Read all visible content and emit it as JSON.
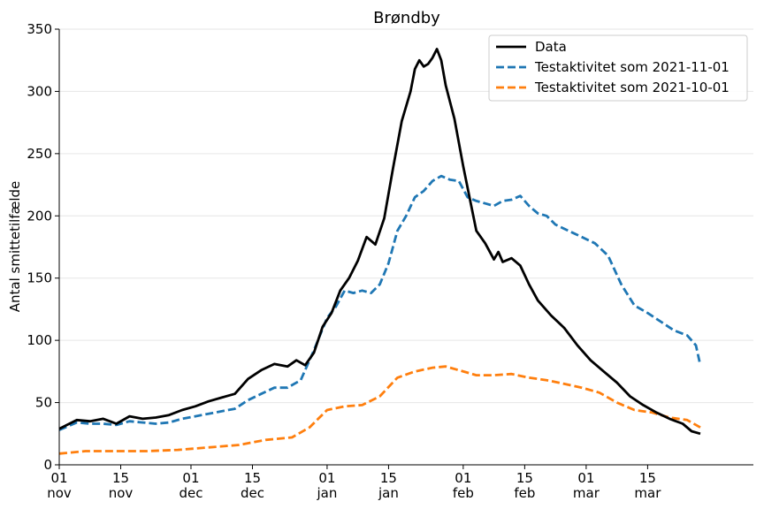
{
  "chart_data": {
    "type": "line",
    "title": "Brøndby",
    "xlabel": "",
    "ylabel": "Antal smittetilfælde",
    "xlim": [
      "2021-11-01",
      "2022-03-27"
    ],
    "ylim": [
      0,
      350
    ],
    "yticks": [
      0,
      50,
      100,
      150,
      200,
      250,
      300,
      350
    ],
    "xticks": [
      {
        "date": "2021-11-01",
        "day": "01",
        "month": "nov"
      },
      {
        "date": "2021-11-15",
        "day": "15",
        "month": "nov"
      },
      {
        "date": "2021-12-01",
        "day": "01",
        "month": "dec"
      },
      {
        "date": "2021-12-15",
        "day": "15",
        "month": "dec"
      },
      {
        "date": "2022-01-01",
        "day": "01",
        "month": "jan"
      },
      {
        "date": "2022-01-15",
        "day": "15",
        "month": "jan"
      },
      {
        "date": "2022-02-01",
        "day": "01",
        "month": "feb"
      },
      {
        "date": "2022-02-15",
        "day": "15",
        "month": "feb"
      },
      {
        "date": "2022-03-01",
        "day": "01",
        "month": "mar"
      },
      {
        "date": "2022-03-15",
        "day": "15",
        "month": "mar"
      }
    ],
    "grid": "horizontal",
    "legend_position": "top-right",
    "series": [
      {
        "name": "Data",
        "color": "#000000",
        "style": "solid",
        "points": [
          [
            "2021-11-01",
            29
          ],
          [
            "2021-11-05",
            36
          ],
          [
            "2021-11-08",
            35
          ],
          [
            "2021-11-11",
            37
          ],
          [
            "2021-11-14",
            33
          ],
          [
            "2021-11-17",
            39
          ],
          [
            "2021-11-20",
            37
          ],
          [
            "2021-11-23",
            38
          ],
          [
            "2021-11-26",
            40
          ],
          [
            "2021-11-29",
            44
          ],
          [
            "2021-12-02",
            47
          ],
          [
            "2021-12-05",
            51
          ],
          [
            "2021-12-08",
            54
          ],
          [
            "2021-12-11",
            57
          ],
          [
            "2021-12-14",
            69
          ],
          [
            "2021-12-17",
            76
          ],
          [
            "2021-12-20",
            81
          ],
          [
            "2021-12-23",
            79
          ],
          [
            "2021-12-25",
            84
          ],
          [
            "2021-12-27",
            80
          ],
          [
            "2021-12-29",
            90
          ],
          [
            "2021-12-31",
            111
          ],
          [
            "2022-01-02",
            122
          ],
          [
            "2022-01-04",
            140
          ],
          [
            "2022-01-06",
            150
          ],
          [
            "2022-01-08",
            164
          ],
          [
            "2022-01-10",
            183
          ],
          [
            "2022-01-12",
            177
          ],
          [
            "2022-01-14",
            198
          ],
          [
            "2022-01-16",
            238
          ],
          [
            "2022-01-18",
            276
          ],
          [
            "2022-01-20",
            300
          ],
          [
            "2022-01-21",
            318
          ],
          [
            "2022-01-22",
            325
          ],
          [
            "2022-01-23",
            320
          ],
          [
            "2022-01-24",
            322
          ],
          [
            "2022-01-25",
            327
          ],
          [
            "2022-01-26",
            334
          ],
          [
            "2022-01-27",
            325
          ],
          [
            "2022-01-28",
            305
          ],
          [
            "2022-01-30",
            278
          ],
          [
            "2022-02-01",
            240
          ],
          [
            "2022-02-03",
            205
          ],
          [
            "2022-02-04",
            188
          ],
          [
            "2022-02-06",
            178
          ],
          [
            "2022-02-08",
            165
          ],
          [
            "2022-02-09",
            171
          ],
          [
            "2022-02-10",
            163
          ],
          [
            "2022-02-12",
            166
          ],
          [
            "2022-02-14",
            160
          ],
          [
            "2022-02-16",
            145
          ],
          [
            "2022-02-18",
            132
          ],
          [
            "2022-02-21",
            120
          ],
          [
            "2022-02-24",
            110
          ],
          [
            "2022-02-27",
            96
          ],
          [
            "2022-03-02",
            84
          ],
          [
            "2022-03-05",
            75
          ],
          [
            "2022-03-08",
            66
          ],
          [
            "2022-03-11",
            55
          ],
          [
            "2022-03-14",
            48
          ],
          [
            "2022-03-17",
            42
          ],
          [
            "2022-03-20",
            37
          ],
          [
            "2022-03-23",
            33
          ],
          [
            "2022-03-25",
            27
          ],
          [
            "2022-03-27",
            25
          ]
        ]
      },
      {
        "name": "Testaktivitet som 2021-11-01",
        "color": "#1f77b4",
        "style": "dashed",
        "points": [
          [
            "2021-11-01",
            28
          ],
          [
            "2021-11-05",
            34
          ],
          [
            "2021-11-08",
            33
          ],
          [
            "2021-11-11",
            33
          ],
          [
            "2021-11-14",
            32
          ],
          [
            "2021-11-17",
            35
          ],
          [
            "2021-11-20",
            34
          ],
          [
            "2021-11-23",
            33
          ],
          [
            "2021-11-26",
            34
          ],
          [
            "2021-11-29",
            37
          ],
          [
            "2021-12-02",
            39
          ],
          [
            "2021-12-05",
            41
          ],
          [
            "2021-12-08",
            43
          ],
          [
            "2021-12-11",
            45
          ],
          [
            "2021-12-14",
            52
          ],
          [
            "2021-12-17",
            57
          ],
          [
            "2021-12-20",
            62
          ],
          [
            "2021-12-23",
            62
          ],
          [
            "2021-12-26",
            68
          ],
          [
            "2021-12-29",
            92
          ],
          [
            "2022-01-01",
            118
          ],
          [
            "2022-01-03",
            127
          ],
          [
            "2022-01-05",
            140
          ],
          [
            "2022-01-07",
            138
          ],
          [
            "2022-01-09",
            140
          ],
          [
            "2022-01-11",
            138
          ],
          [
            "2022-01-13",
            145
          ],
          [
            "2022-01-15",
            162
          ],
          [
            "2022-01-17",
            188
          ],
          [
            "2022-01-19",
            200
          ],
          [
            "2022-01-21",
            215
          ],
          [
            "2022-01-23",
            220
          ],
          [
            "2022-01-25",
            228
          ],
          [
            "2022-01-27",
            232
          ],
          [
            "2022-01-29",
            229
          ],
          [
            "2022-01-31",
            228
          ],
          [
            "2022-02-02",
            215
          ],
          [
            "2022-02-04",
            212
          ],
          [
            "2022-02-06",
            210
          ],
          [
            "2022-02-08",
            208
          ],
          [
            "2022-02-10",
            212
          ],
          [
            "2022-02-12",
            213
          ],
          [
            "2022-02-14",
            216
          ],
          [
            "2022-02-16",
            208
          ],
          [
            "2022-02-18",
            202
          ],
          [
            "2022-02-20",
            200
          ],
          [
            "2022-02-22",
            193
          ],
          [
            "2022-02-25",
            188
          ],
          [
            "2022-02-28",
            183
          ],
          [
            "2022-03-03",
            178
          ],
          [
            "2022-03-06",
            168
          ],
          [
            "2022-03-09",
            145
          ],
          [
            "2022-03-12",
            128
          ],
          [
            "2022-03-15",
            122
          ],
          [
            "2022-03-18",
            115
          ],
          [
            "2022-03-21",
            108
          ],
          [
            "2022-03-24",
            104
          ],
          [
            "2022-03-26",
            96
          ],
          [
            "2022-03-27",
            80
          ]
        ]
      },
      {
        "name": "Testaktivitet som 2021-10-01",
        "color": "#ff7f0e",
        "style": "dashed",
        "points": [
          [
            "2021-11-01",
            9
          ],
          [
            "2021-11-07",
            11
          ],
          [
            "2021-11-14",
            11
          ],
          [
            "2021-11-21",
            11
          ],
          [
            "2021-11-28",
            12
          ],
          [
            "2021-12-05",
            14
          ],
          [
            "2021-12-12",
            16
          ],
          [
            "2021-12-18",
            20
          ],
          [
            "2021-12-24",
            22
          ],
          [
            "2021-12-28",
            30
          ],
          [
            "2022-01-01",
            44
          ],
          [
            "2022-01-05",
            47
          ],
          [
            "2022-01-09",
            48
          ],
          [
            "2022-01-13",
            55
          ],
          [
            "2022-01-17",
            70
          ],
          [
            "2022-01-21",
            75
          ],
          [
            "2022-01-25",
            78
          ],
          [
            "2022-01-28",
            79
          ],
          [
            "2022-01-31",
            76
          ],
          [
            "2022-02-04",
            72
          ],
          [
            "2022-02-08",
            72
          ],
          [
            "2022-02-12",
            73
          ],
          [
            "2022-02-16",
            70
          ],
          [
            "2022-02-20",
            68
          ],
          [
            "2022-02-24",
            65
          ],
          [
            "2022-02-28",
            62
          ],
          [
            "2022-03-04",
            58
          ],
          [
            "2022-03-08",
            50
          ],
          [
            "2022-03-12",
            44
          ],
          [
            "2022-03-16",
            42
          ],
          [
            "2022-03-20",
            38
          ],
          [
            "2022-03-24",
            36
          ],
          [
            "2022-03-27",
            30
          ]
        ]
      }
    ]
  }
}
